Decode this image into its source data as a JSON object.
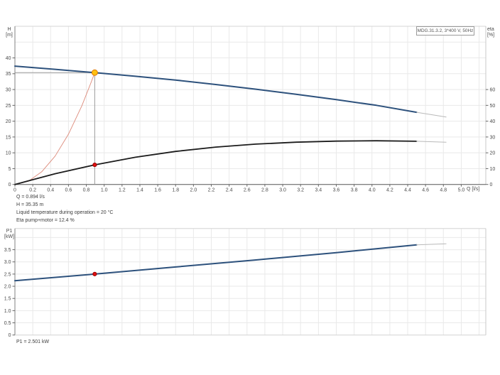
{
  "colors": {
    "pump_curve_blue": "#2d517c",
    "eta_curve_black": "#1c1c1c",
    "system_curve_red": "#dd8a7a",
    "extension_gray": "#b9b9b9",
    "guide_gray": "#9a9a9a",
    "grid_gray": "#e9e9e9",
    "marker_yellow": "#ffc010",
    "marker_yellow_edge": "#e07800",
    "marker_red": "#e01010"
  },
  "annotations": {
    "line1": "Q = 0.894 l/s",
    "line2": "H = 35.35 m",
    "line3": "Liquid temperature during operation = 20 °C",
    "line4": "Eta pump+motor = 12.4 %",
    "p1": "P1 = 2.501 kW"
  },
  "duty_point": {
    "q_ls": 0.894,
    "h_m": 35.35,
    "eta_pct": 12.4,
    "p1_kw": 2.501
  },
  "chart_data": [
    {
      "type": "line",
      "title": "MDG.31.3.2, 3*400 V, 50Hz",
      "xlabel": "Q [l/s]",
      "ylabel_left": [
        "H",
        "[m]"
      ],
      "ylabel_right": [
        "eta",
        "[%]"
      ],
      "xlim": [
        0,
        5.275
      ],
      "ylim_left": [
        0,
        50
      ],
      "ylim_right": [
        0,
        100
      ],
      "show_x_tick_labels": true,
      "grid": {
        "x": [
          0.2,
          0.4,
          0.6,
          0.8,
          1,
          1.2,
          1.4,
          1.6,
          1.8,
          2,
          2.2,
          2.4,
          2.6,
          2.8,
          3,
          3.2,
          3.4,
          3.6,
          3.8,
          4,
          4.2,
          4.4,
          4.6,
          4.8,
          5,
          5.2
        ],
        "y": [
          5,
          10,
          15,
          20,
          25,
          30,
          35,
          40,
          45
        ]
      },
      "ticks_x": [
        [
          0,
          "0"
        ],
        [
          0.2,
          "0.2"
        ],
        [
          0.4,
          "0.4"
        ],
        [
          0.6,
          "0.6"
        ],
        [
          0.8,
          "0.8"
        ],
        [
          1,
          "1.0"
        ],
        [
          1.2,
          "1.2"
        ],
        [
          1.4,
          "1.4"
        ],
        [
          1.6,
          "1.6"
        ],
        [
          1.8,
          "1.8"
        ],
        [
          2,
          "2.0"
        ],
        [
          2.2,
          "2.2"
        ],
        [
          2.4,
          "2.4"
        ],
        [
          2.6,
          "2.6"
        ],
        [
          2.8,
          "2.8"
        ],
        [
          3,
          "3.0"
        ],
        [
          3.2,
          "3.2"
        ],
        [
          3.4,
          "3.4"
        ],
        [
          3.6,
          "3.6"
        ],
        [
          3.8,
          "3.8"
        ],
        [
          4,
          "4.0"
        ],
        [
          4.2,
          "4.2"
        ],
        [
          4.4,
          "4.4"
        ],
        [
          4.6,
          "4.6"
        ],
        [
          4.8,
          "4.8"
        ],
        [
          5,
          "5.0"
        ]
      ],
      "ticks_left": [
        [
          0,
          "0"
        ],
        [
          5,
          "5"
        ],
        [
          10,
          "10"
        ],
        [
          15,
          "15"
        ],
        [
          20,
          "20"
        ],
        [
          25,
          "25"
        ],
        [
          30,
          "30"
        ],
        [
          35,
          "35"
        ],
        [
          40,
          "40"
        ]
      ],
      "ticks_right": [
        [
          0,
          "0"
        ],
        [
          10,
          "10"
        ],
        [
          20,
          "20"
        ],
        [
          30,
          "30"
        ],
        [
          40,
          "40"
        ],
        [
          50,
          "50"
        ],
        [
          60,
          "60"
        ]
      ],
      "series": [
        {
          "name": "system-curve",
          "axis": "left",
          "color": "#dd8a7a",
          "width": 0.9,
          "points": [
            [
              0,
              0
            ],
            [
              0.15,
              1.0
            ],
            [
              0.3,
              4.0
            ],
            [
              0.45,
              8.95
            ],
            [
              0.6,
              15.9
            ],
            [
              0.75,
              24.9
            ],
            [
              0.85,
              32.0
            ],
            [
              0.894,
              35.35
            ]
          ]
        },
        {
          "name": "eta-curve",
          "axis": "right",
          "color": "#1c1c1c",
          "width": 1.8,
          "points": [
            [
              0,
              0
            ],
            [
              0.45,
              6.8
            ],
            [
              0.894,
              12.4
            ],
            [
              1.35,
              17.2
            ],
            [
              1.8,
              20.9
            ],
            [
              2.25,
              23.6
            ],
            [
              2.7,
              25.5
            ],
            [
              3.15,
              26.7
            ],
            [
              3.6,
              27.4
            ],
            [
              4.05,
              27.6
            ],
            [
              4.5,
              27.3
            ]
          ]
        },
        {
          "name": "eta-curve-extension",
          "axis": "right",
          "color": "#b9b9b9",
          "width": 1,
          "points": [
            [
              4.5,
              27.3
            ],
            [
              4.83,
              26.7
            ]
          ]
        },
        {
          "name": "pump-curve",
          "axis": "left",
          "color": "#2d517c",
          "width": 2,
          "points": [
            [
              0,
              37.4
            ],
            [
              0.45,
              36.4
            ],
            [
              0.894,
              35.35
            ],
            [
              1.35,
              34.2
            ],
            [
              1.8,
              33.0
            ],
            [
              2.25,
              31.6
            ],
            [
              2.7,
              30.1
            ],
            [
              3.15,
              28.5
            ],
            [
              3.6,
              26.8
            ],
            [
              4.05,
              25.0
            ],
            [
              4.5,
              22.8
            ]
          ]
        },
        {
          "name": "pump-curve-extension",
          "axis": "left",
          "color": "#b9b9b9",
          "width": 1,
          "points": [
            [
              4.5,
              22.8
            ],
            [
              4.83,
              21.3
            ]
          ]
        }
      ],
      "guides": [
        {
          "dir": "h",
          "axis": "left",
          "y": 35.35,
          "x1": 0,
          "x2": 0.894
        },
        {
          "dir": "v",
          "axis": "left",
          "x": 0.894,
          "y1": 0,
          "y2": 35.35
        }
      ],
      "markers": [
        {
          "name": "duty-point-qh",
          "x": 0.894,
          "y": 35.35,
          "axis": "left",
          "r": 4,
          "fill": "#ffc010",
          "stroke": "#e07800"
        },
        {
          "name": "duty-point-eta",
          "x": 0.894,
          "y": 12.4,
          "axis": "right",
          "r": 2.6,
          "fill": "#e01010",
          "stroke": "#990000"
        }
      ]
    },
    {
      "type": "line",
      "title": "",
      "xlabel": "",
      "ylabel_left": [
        "P1",
        "[kW]"
      ],
      "xlim": [
        0,
        5.275
      ],
      "ylim_left": [
        0,
        4.37
      ],
      "show_x_tick_labels": false,
      "grid": {
        "x": [
          0.2,
          0.4,
          0.6,
          0.8,
          1,
          1.2,
          1.4,
          1.6,
          1.8,
          2,
          2.2,
          2.4,
          2.6,
          2.8,
          3,
          3.2,
          3.4,
          3.6,
          3.8,
          4,
          4.2,
          4.4,
          4.6,
          4.8,
          5,
          5.2
        ],
        "y": [
          0.5,
          1,
          1.5,
          2,
          2.5,
          3,
          3.5,
          4
        ]
      },
      "ticks_x": [],
      "ticks_left": [
        [
          0,
          "0"
        ],
        [
          0.5,
          "0.5"
        ],
        [
          1,
          "1.0"
        ],
        [
          1.5,
          "1.5"
        ],
        [
          2,
          "2.0"
        ],
        [
          2.5,
          "2.5"
        ],
        [
          3,
          "3.0"
        ],
        [
          3.5,
          "3.5"
        ]
      ],
      "series": [
        {
          "name": "p1-curve",
          "axis": "left",
          "color": "#2d517c",
          "width": 2,
          "points": [
            [
              0,
              2.23
            ],
            [
              0.894,
              2.501
            ],
            [
              1.8,
              2.79
            ],
            [
              2.7,
              3.08
            ],
            [
              3.6,
              3.38
            ],
            [
              4.5,
              3.7
            ]
          ]
        },
        {
          "name": "p1-curve-extension",
          "axis": "left",
          "color": "#b9b9b9",
          "width": 1,
          "points": [
            [
              4.5,
              3.7
            ],
            [
              4.83,
              3.74
            ]
          ]
        }
      ],
      "guides": [],
      "markers": [
        {
          "name": "duty-point-p1",
          "x": 0.894,
          "y": 2.501,
          "axis": "left",
          "r": 2.6,
          "fill": "#e01010",
          "stroke": "#990000"
        }
      ]
    }
  ]
}
